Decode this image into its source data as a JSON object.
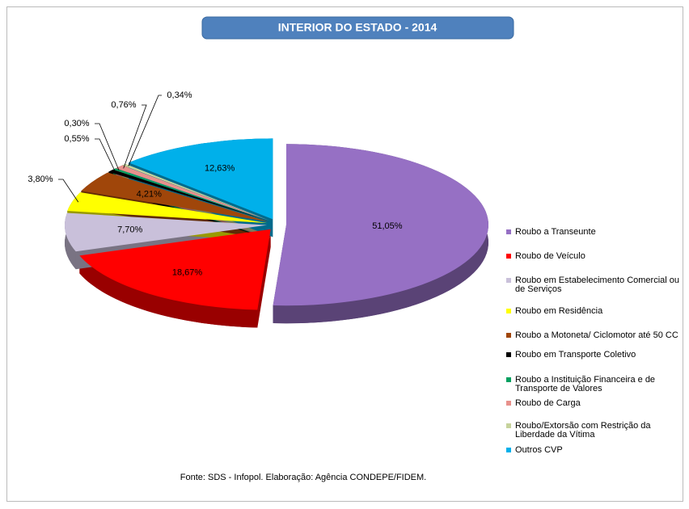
{
  "chart_data": {
    "type": "pie",
    "title": "INTERIOR DO ESTADO - 2014",
    "categories": [
      "Roubo a Transeunte",
      "Roubo de Veículo",
      "Roubo em Estabelecimento Comercial ou de Serviços",
      "Roubo em Residência",
      "Roubo a Motoneta/ Ciclomotor até 50 CC",
      "Roubo em Transporte Coletivo",
      "Roubo a Instituição Financeira e de Transporte de Valores",
      "Roubo de Carga",
      "Roubo/Extorsão com Restrição da Liberdade da Vítima",
      "Outros CVP"
    ],
    "values": [
      51.05,
      18.67,
      7.7,
      3.8,
      4.21,
      0.55,
      0.3,
      0.76,
      0.34,
      12.63
    ],
    "value_labels": [
      "51,05%",
      "18,67%",
      "7,70%",
      "3,80%",
      "4,21%",
      "0,55%",
      "0,30%",
      "0,76%",
      "0,34%",
      "12,63%"
    ],
    "colors": [
      "#9670c4",
      "#ff0000",
      "#c9c0da",
      "#ffff00",
      "#a0460a",
      "#000000",
      "#00a060",
      "#e8918c",
      "#c6d39c",
      "#00b0ea"
    ],
    "legend": "right",
    "annotation": "Fonte: SDS - Infopol.  Elaboração: Agência CONDEPE/FIDEM."
  }
}
